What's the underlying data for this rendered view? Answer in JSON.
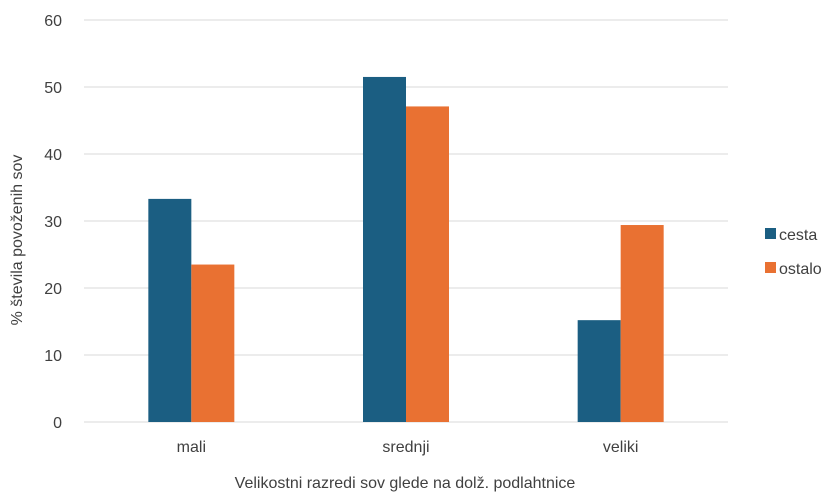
{
  "chart_data": {
    "type": "bar",
    "title": "",
    "xlabel": "Velikostni razredi sov glede na dolž. podlahtnice",
    "ylabel": "% števila povoženih sov",
    "categories": [
      "mali",
      "srednji",
      "veliki"
    ],
    "series": [
      {
        "name": "cesta",
        "color": "#1b5e82",
        "values": [
          33.3,
          51.5,
          15.2
        ]
      },
      {
        "name": "ostalo",
        "color": "#e97132",
        "values": [
          23.5,
          47.1,
          29.4
        ]
      }
    ],
    "ylim": [
      0,
      60
    ],
    "yticks": [
      0,
      10,
      20,
      30,
      40,
      50,
      60
    ],
    "grid": true,
    "legend_position": "right"
  }
}
